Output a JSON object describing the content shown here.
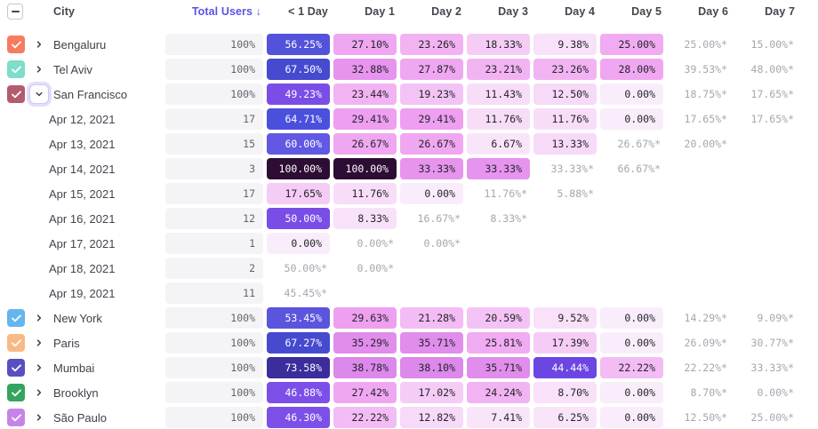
{
  "header": {
    "city": "City",
    "total_users": "Total Users ↓",
    "days": [
      "< 1 Day",
      "Day 1",
      "Day 2",
      "Day 3",
      "Day 4",
      "Day 5",
      "Day 6",
      "Day 7"
    ]
  },
  "colors": {
    "accent": "#5b51e9",
    "estimate_text": "#a6a6b0",
    "pill_bg": "#f4f4f6",
    "header_text": "#45454f"
  },
  "icons": {
    "select_all": "minus-icon",
    "row_selected": "check-icon",
    "collapsed": "chevron-right-icon",
    "expanded": "chevron-down-icon",
    "sort": "arrow-down (in Total Users label)"
  },
  "rows": [
    {
      "type": "city",
      "label": "Bengaluru",
      "checkbox": "#f87b5f",
      "expanded": false,
      "total": "100%",
      "cells": [
        {
          "v": "56.25%",
          "bg": "#5252db",
          "w": 1
        },
        {
          "v": "27.10%",
          "bg": "#f0a7f1"
        },
        {
          "v": "23.26%",
          "bg": "#f2b3f3"
        },
        {
          "v": "18.33%",
          "bg": "#f5ccf6"
        },
        {
          "v": "9.38%",
          "bg": "#f8e1f9"
        },
        {
          "v": "25.00%",
          "bg": "#f1abf2"
        },
        {
          "v": "25.00%*",
          "e": 1
        },
        {
          "v": "15.00%*",
          "e": 1
        }
      ]
    },
    {
      "type": "city",
      "label": "Tel Aviv",
      "checkbox": "#7eddcb",
      "expanded": false,
      "total": "100%",
      "cells": [
        {
          "v": "67.50%",
          "bg": "#454acf",
          "w": 1
        },
        {
          "v": "32.88%",
          "bg": "#e694ee"
        },
        {
          "v": "27.87%",
          "bg": "#f0a7f1"
        },
        {
          "v": "23.21%",
          "bg": "#f2b3f3"
        },
        {
          "v": "23.26%",
          "bg": "#f2b3f3"
        },
        {
          "v": "28.00%",
          "bg": "#f0a7f1"
        },
        {
          "v": "39.53%*",
          "e": 1
        },
        {
          "v": "48.00%*",
          "e": 1
        }
      ]
    },
    {
      "type": "city",
      "label": "San Francisco",
      "checkbox": "#b25c6d",
      "expanded": true,
      "total": "100%",
      "cells": [
        {
          "v": "49.23%",
          "bg": "#7a4de7",
          "w": 1
        },
        {
          "v": "23.44%",
          "bg": "#f2b3f3"
        },
        {
          "v": "19.23%",
          "bg": "#f4c3f5"
        },
        {
          "v": "11.43%",
          "bg": "#f8ddf9"
        },
        {
          "v": "12.50%",
          "bg": "#f7d9f8"
        },
        {
          "v": "0.00%",
          "bg": "#faedfb"
        },
        {
          "v": "18.75%*",
          "e": 1
        },
        {
          "v": "17.65%*",
          "e": 1
        }
      ]
    },
    {
      "type": "date",
      "label": "Apr 12, 2021",
      "total": "17",
      "cells": [
        {
          "v": "64.71%",
          "bg": "#4b50dc",
          "w": 1
        },
        {
          "v": "29.41%",
          "bg": "#ee9ff0"
        },
        {
          "v": "29.41%",
          "bg": "#ee9ff0"
        },
        {
          "v": "11.76%",
          "bg": "#f8ddf9"
        },
        {
          "v": "11.76%",
          "bg": "#f8ddf9"
        },
        {
          "v": "0.00%",
          "bg": "#faedfb"
        },
        {
          "v": "17.65%*",
          "e": 1
        },
        {
          "v": "17.65%*",
          "e": 1
        }
      ]
    },
    {
      "type": "date",
      "label": "Apr 13, 2021",
      "total": "15",
      "cells": [
        {
          "v": "60.00%",
          "bg": "#6159e3",
          "w": 1
        },
        {
          "v": "26.67%",
          "bg": "#f0a7f1"
        },
        {
          "v": "26.67%",
          "bg": "#f0a7f1"
        },
        {
          "v": "6.67%",
          "bg": "#f9e5fa"
        },
        {
          "v": "13.33%",
          "bg": "#f7d9f8"
        },
        {
          "v": "26.67%*",
          "e": 1
        },
        {
          "v": "20.00%*",
          "e": 1
        },
        null
      ]
    },
    {
      "type": "date",
      "label": "Apr 14, 2021",
      "total": "3",
      "cells": [
        {
          "v": "100.00%",
          "bg": "#2e0d34",
          "w": 1
        },
        {
          "v": "100.00%",
          "bg": "#2e0d34",
          "w": 1
        },
        {
          "v": "33.33%",
          "bg": "#e694ee"
        },
        {
          "v": "33.33%",
          "bg": "#e694ee"
        },
        {
          "v": "33.33%*",
          "e": 1
        },
        {
          "v": "66.67%*",
          "e": 1
        },
        null,
        null
      ]
    },
    {
      "type": "date",
      "label": "Apr 15, 2021",
      "total": "17",
      "cells": [
        {
          "v": "17.65%",
          "bg": "#f5ccf6"
        },
        {
          "v": "11.76%",
          "bg": "#f8ddf9"
        },
        {
          "v": "0.00%",
          "bg": "#faedfb"
        },
        {
          "v": "11.76%*",
          "e": 1
        },
        {
          "v": "5.88%*",
          "e": 1
        },
        null,
        null,
        null
      ]
    },
    {
      "type": "date",
      "label": "Apr 16, 2021",
      "total": "12",
      "cells": [
        {
          "v": "50.00%",
          "bg": "#7a4de7",
          "w": 1
        },
        {
          "v": "8.33%",
          "bg": "#f8e2f9"
        },
        {
          "v": "16.67%*",
          "e": 1
        },
        {
          "v": "8.33%*",
          "e": 1
        },
        null,
        null,
        null,
        null
      ]
    },
    {
      "type": "date",
      "label": "Apr 17, 2021",
      "total": "1",
      "cells": [
        {
          "v": "0.00%",
          "bg": "#faedfb"
        },
        {
          "v": "0.00%*",
          "e": 1
        },
        {
          "v": "0.00%*",
          "e": 1
        },
        null,
        null,
        null,
        null,
        null
      ]
    },
    {
      "type": "date",
      "label": "Apr 18, 2021",
      "total": "2",
      "cells": [
        {
          "v": "50.00%*",
          "e": 1
        },
        {
          "v": "0.00%*",
          "e": 1
        },
        null,
        null,
        null,
        null,
        null,
        null
      ]
    },
    {
      "type": "date",
      "label": "Apr 19, 2021",
      "total": "11",
      "cells": [
        {
          "v": "45.45%*",
          "e": 1
        },
        null,
        null,
        null,
        null,
        null,
        null,
        null
      ]
    },
    {
      "type": "city",
      "label": "New York",
      "checkbox": "#64b5f0",
      "expanded": false,
      "total": "100%",
      "cells": [
        {
          "v": "53.45%",
          "bg": "#5b55de",
          "w": 1
        },
        {
          "v": "29.63%",
          "bg": "#ee9ff0"
        },
        {
          "v": "21.28%",
          "bg": "#f3bcf4"
        },
        {
          "v": "20.59%",
          "bg": "#f4c3f5"
        },
        {
          "v": "9.52%",
          "bg": "#f8e1f9"
        },
        {
          "v": "0.00%",
          "bg": "#faedfb"
        },
        {
          "v": "14.29%*",
          "e": 1
        },
        {
          "v": "9.09%*",
          "e": 1
        }
      ]
    },
    {
      "type": "city",
      "label": "Paris",
      "checkbox": "#f8ba85",
      "expanded": false,
      "total": "100%",
      "cells": [
        {
          "v": "67.27%",
          "bg": "#454acf",
          "w": 1
        },
        {
          "v": "35.29%",
          "bg": "#e18dec"
        },
        {
          "v": "35.71%",
          "bg": "#e18dec"
        },
        {
          "v": "25.81%",
          "bg": "#f1abf2"
        },
        {
          "v": "17.39%",
          "bg": "#f5ccf6"
        },
        {
          "v": "0.00%",
          "bg": "#faedfb"
        },
        {
          "v": "26.09%*",
          "e": 1
        },
        {
          "v": "30.77%*",
          "e": 1
        }
      ]
    },
    {
      "type": "city",
      "label": "Mumbai",
      "checkbox": "#5a4fc0",
      "expanded": false,
      "total": "100%",
      "cells": [
        {
          "v": "73.58%",
          "bg": "#3b2d9b",
          "w": 1
        },
        {
          "v": "38.78%",
          "bg": "#dd88eb"
        },
        {
          "v": "38.10%",
          "bg": "#dd88eb"
        },
        {
          "v": "35.71%",
          "bg": "#e18dec"
        },
        {
          "v": "44.44%",
          "bg": "#6b46e2",
          "w": 1
        },
        {
          "v": "22.22%",
          "bg": "#f3bcf4"
        },
        {
          "v": "22.22%*",
          "e": 1
        },
        {
          "v": "33.33%*",
          "e": 1
        }
      ]
    },
    {
      "type": "city",
      "label": "Brooklyn",
      "checkbox": "#34a560",
      "expanded": false,
      "total": "100%",
      "cells": [
        {
          "v": "46.88%",
          "bg": "#7c50e8",
          "w": 1
        },
        {
          "v": "27.42%",
          "bg": "#f0a7f1"
        },
        {
          "v": "17.02%",
          "bg": "#f5ccf6"
        },
        {
          "v": "24.24%",
          "bg": "#f2b3f3"
        },
        {
          "v": "8.70%",
          "bg": "#f8e1f9"
        },
        {
          "v": "0.00%",
          "bg": "#faedfb"
        },
        {
          "v": "8.70%*",
          "e": 1
        },
        {
          "v": "0.00%*",
          "e": 1
        }
      ]
    },
    {
      "type": "city",
      "label": "São Paulo",
      "checkbox": "#c585e8",
      "expanded": false,
      "total": "100%",
      "cells": [
        {
          "v": "46.30%",
          "bg": "#7c50e8",
          "w": 1
        },
        {
          "v": "22.22%",
          "bg": "#f3bcf4"
        },
        {
          "v": "12.82%",
          "bg": "#f7d9f8"
        },
        {
          "v": "7.41%",
          "bg": "#f9e5fa"
        },
        {
          "v": "6.25%",
          "bg": "#f9e5fa"
        },
        {
          "v": "0.00%",
          "bg": "#faedfb"
        },
        {
          "v": "12.50%*",
          "e": 1
        },
        {
          "v": "25.00%*",
          "e": 1
        }
      ]
    }
  ]
}
